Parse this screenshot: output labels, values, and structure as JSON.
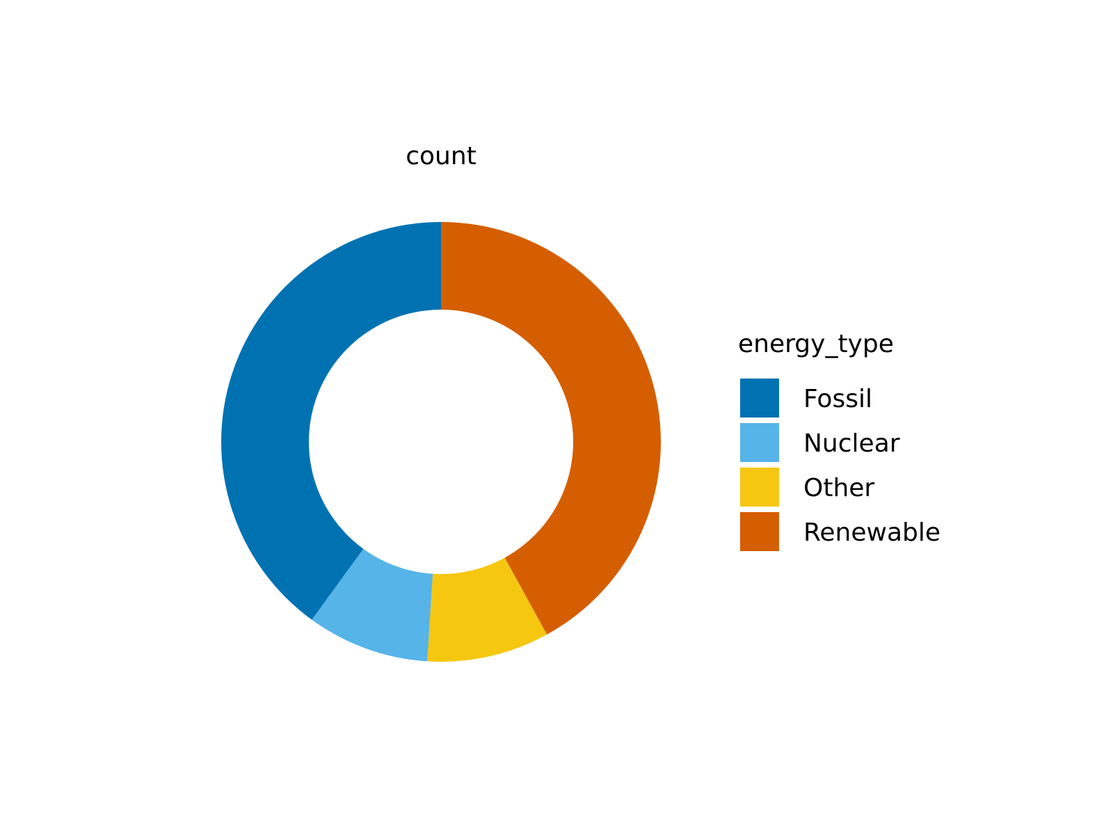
{
  "chart_data": {
    "type": "pie",
    "title": "count",
    "legend": {
      "title": "energy_type",
      "placement": "right"
    },
    "categories": [
      "Fossil",
      "Nuclear",
      "Other",
      "Renewable"
    ],
    "values": [
      40,
      9,
      9,
      42
    ],
    "colors": [
      "#0072B2",
      "#56B4E9",
      "#F5C710",
      "#D55E00"
    ]
  }
}
